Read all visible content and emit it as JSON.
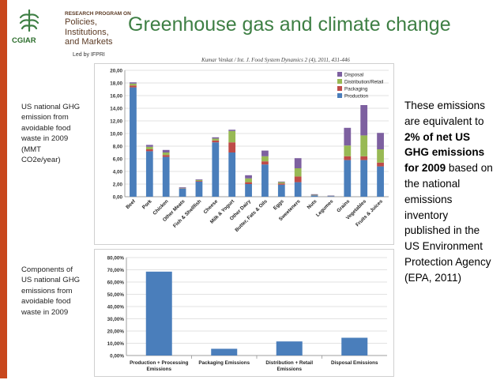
{
  "header": {
    "program_label": "RESEARCH PROGRAM ON",
    "program_lines": [
      "Policies,",
      "Institutions,",
      "and Markets"
    ],
    "org": "CGIAR",
    "led_by": "Led by IFPRI",
    "title": "Greenhouse gas and climate change",
    "citation": "Kumar Venkat / Int. J. Food System Dynamics 2 (4), 2011, 431-446"
  },
  "left_notes": {
    "top": [
      "US national GHG",
      "emission from",
      "avoidable food",
      "waste in 2009",
      "(MMT",
      "CO2e/year)"
    ],
    "bottom": [
      "Components of",
      "US national GHG",
      "emissions from",
      "avoidable food",
      "waste in 2009"
    ]
  },
  "right_note": {
    "pre": "These emissions are equivalent to ",
    "bold": "2% of net US GHG emissions for 2009",
    "post": " based on the national emissions inventory published in the US Environment Protection Agency (EPA, 2011)"
  },
  "colors": {
    "production": "#4a7ebb",
    "packaging": "#be4b48",
    "distribution": "#98b954",
    "disposal": "#7d60a0",
    "component_bar": "#4a7ebb",
    "accent": "#3e7f44",
    "side_bar": "#c8471d"
  },
  "chart_data": [
    {
      "type": "bar",
      "stacked": true,
      "categories": [
        "Beef",
        "Pork",
        "Chicken",
        "Other Meats",
        "Fish & Shellfish",
        "Cheese",
        "Milk & Yogurt",
        "Other Dairy",
        "Butter, Fats & Oils",
        "Eggs",
        "Sweeteners",
        "Nuts",
        "Legumes",
        "Grains",
        "Vegetables",
        "Fruits & Juices"
      ],
      "series": [
        {
          "name": "Production",
          "values": [
            17.3,
            7.2,
            6.3,
            1.3,
            2.4,
            8.6,
            7.0,
            2.0,
            5.1,
            1.9,
            2.3,
            0.2,
            0.1,
            5.8,
            5.8,
            4.8
          ]
        },
        {
          "name": "Packaging",
          "values": [
            0.3,
            0.3,
            0.3,
            0.05,
            0.1,
            0.3,
            1.6,
            0.3,
            0.5,
            0.2,
            0.9,
            0.03,
            0.02,
            0.6,
            0.6,
            0.6
          ]
        },
        {
          "name": "Distribution/Retail",
          "values": [
            0.3,
            0.4,
            0.4,
            0.05,
            0.15,
            0.3,
            1.8,
            0.6,
            0.8,
            0.2,
            1.3,
            0.07,
            0.03,
            1.7,
            3.3,
            2.1
          ]
        },
        {
          "name": "Disposal",
          "values": [
            0.2,
            0.3,
            0.4,
            0.1,
            0.1,
            0.2,
            0.2,
            0.5,
            0.9,
            0.1,
            1.6,
            0.1,
            0.05,
            2.8,
            4.8,
            2.6
          ]
        }
      ],
      "ylim": [
        0,
        20
      ],
      "yticks": [
        "0,00",
        "2,00",
        "4,00",
        "6,00",
        "8,00",
        "10,00",
        "12,00",
        "14,00",
        "16,00",
        "18,00",
        "20,00"
      ],
      "legend_order": [
        "Disposal",
        "Distribution/Retail",
        "Packaging",
        "Production"
      ],
      "legend_position": "top-right",
      "grid": true
    },
    {
      "type": "bar",
      "categories": [
        "Production + Processing Emissions",
        "Packaging Emissions",
        "Distribution + Retail Emissions",
        "Disposal Emissions"
      ],
      "values": [
        68.5,
        5.5,
        11.5,
        14.5
      ],
      "ylim": [
        0,
        80
      ],
      "yticks": [
        "0,00%",
        "10,00%",
        "20,00%",
        "30,00%",
        "40,00%",
        "50,00%",
        "60,00%",
        "70,00%",
        "80,00%"
      ],
      "grid": true
    }
  ]
}
